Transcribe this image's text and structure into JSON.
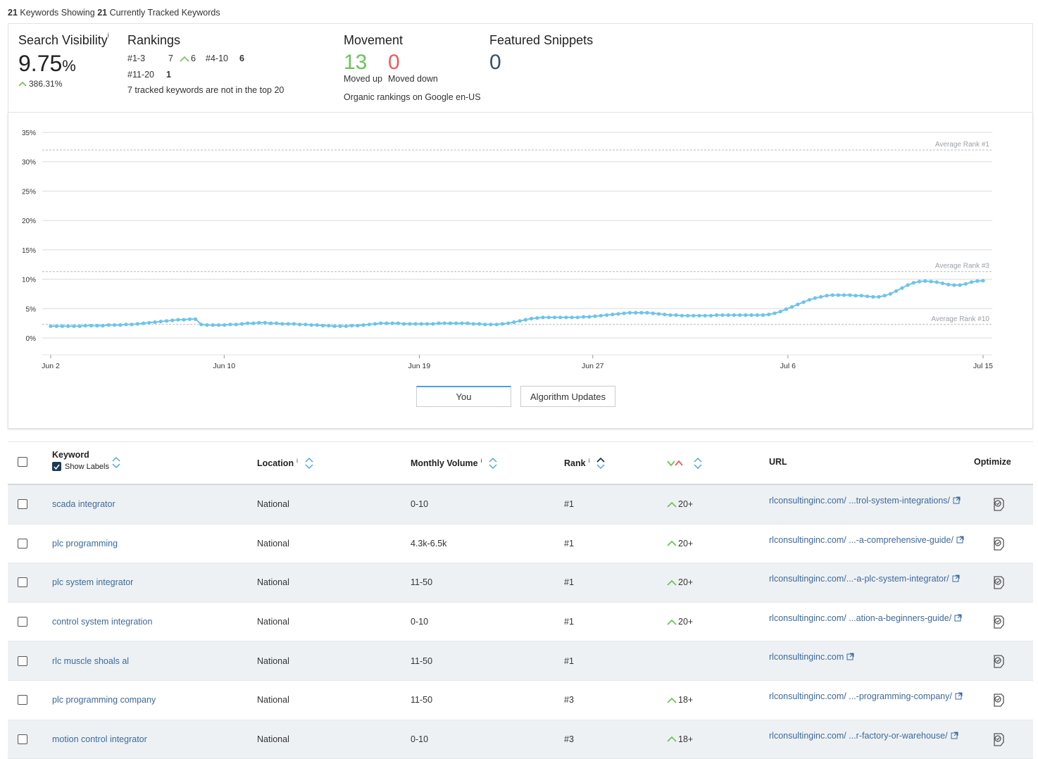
{
  "header": {
    "keyword_count": "21",
    "showing_text": "Keywords Showing",
    "tracked_count": "21",
    "tracked_text": "Currently Tracked Keywords"
  },
  "search_visibility": {
    "title": "Search Visibility",
    "info": "i",
    "value": "9.75",
    "unit": "%",
    "change": "386.31%"
  },
  "rankings": {
    "title": "Rankings",
    "r1_label": "#1-3",
    "r1_value": "7",
    "r1_change": "6",
    "r2_label": "#4-10",
    "r2_value": "6",
    "r3_label": "#11-20",
    "r3_value": "1",
    "note": "7 tracked keywords are not in the top 20"
  },
  "movement": {
    "title": "Movement",
    "up_value": "13",
    "up_label": "Moved up",
    "down_value": "0",
    "down_label": "Moved down",
    "note": "Organic rankings on Google en-US"
  },
  "featured_snippets": {
    "title": "Featured Snippets",
    "value": "0"
  },
  "colors": {
    "line": "#6cc4ea",
    "up_green": "#6cc25a",
    "down_red": "#f0595b",
    "link_blue": "#3d6a9b"
  },
  "chart_data": {
    "type": "line",
    "y_ticks": [
      "35%",
      "30%",
      "25%",
      "20%",
      "15%",
      "10%",
      "5%",
      "0%"
    ],
    "ylim": [
      0,
      35
    ],
    "x_ticks": [
      "Jun 2",
      "Jun 10",
      "Jun 19",
      "Jun 27",
      "Jul 6",
      "Jul 15"
    ],
    "x_tick_days": [
      0,
      8,
      17,
      25,
      34,
      43
    ],
    "xlim_days": [
      0,
      43
    ],
    "reference_lines": [
      {
        "label": "Average Rank #1",
        "value": 32.0
      },
      {
        "label": "Average Rank #3",
        "value": 11.3
      },
      {
        "label": "Average Rank #10",
        "value": 2.3
      }
    ],
    "grid": true,
    "series": [
      {
        "values": [
          2.0,
          2.0,
          2.0,
          2.0,
          2.0,
          2.0,
          2.1,
          2.1,
          2.1,
          2.1,
          2.2,
          2.2,
          2.2,
          2.3,
          2.3,
          2.4,
          2.5,
          2.6,
          2.7,
          2.8,
          2.9,
          3.0,
          3.1,
          3.1,
          3.2,
          3.2,
          2.3,
          2.2,
          2.2,
          2.2,
          2.2,
          2.3,
          2.3,
          2.4,
          2.5,
          2.5,
          2.6,
          2.6,
          2.5,
          2.5,
          2.4,
          2.4,
          2.4,
          2.3,
          2.3,
          2.2,
          2.2,
          2.1,
          2.1,
          2.0,
          2.0,
          2.0,
          2.1,
          2.1,
          2.2,
          2.3,
          2.4,
          2.5,
          2.5,
          2.5,
          2.5,
          2.4,
          2.4,
          2.4,
          2.4,
          2.4,
          2.4,
          2.5,
          2.5,
          2.5,
          2.5,
          2.5,
          2.5,
          2.4,
          2.4,
          2.3,
          2.3,
          2.3,
          2.4,
          2.5,
          2.7,
          2.9,
          3.1,
          3.3,
          3.4,
          3.5,
          3.5,
          3.5,
          3.5,
          3.5,
          3.5,
          3.5,
          3.6,
          3.6,
          3.7,
          3.8,
          3.9,
          4.0,
          4.1,
          4.2,
          4.3,
          4.3,
          4.3,
          4.3,
          4.2,
          4.1,
          4.0,
          3.9,
          3.9,
          3.8,
          3.8,
          3.8,
          3.8,
          3.8,
          3.8,
          3.9,
          3.9,
          3.9,
          3.9,
          3.9,
          3.9,
          3.9,
          3.9,
          3.9,
          4.0,
          4.2,
          4.5,
          4.9,
          5.3,
          5.7,
          6.1,
          6.5,
          6.8,
          7.0,
          7.2,
          7.3,
          7.3,
          7.3,
          7.3,
          7.2,
          7.2,
          7.1,
          7.0,
          7.0,
          7.2,
          7.5,
          8.0,
          8.5,
          9.0,
          9.4,
          9.6,
          9.7,
          9.6,
          9.5,
          9.3,
          9.1,
          9.0,
          9.0,
          9.2,
          9.5,
          9.7,
          9.75
        ]
      }
    ]
  },
  "tabs": {
    "you": "You",
    "algo": "Algorithm Updates"
  },
  "table": {
    "headers": {
      "keyword": "Keyword",
      "show_labels": "Show Labels",
      "location": "Location",
      "volume": "Monthly Volume",
      "rank": "Rank",
      "url": "URL",
      "optimize": "Optimize",
      "info": "i"
    },
    "rows": [
      {
        "keyword": "scada integrator",
        "location": "National",
        "volume": "0-10",
        "rank": "#1",
        "change": "20+",
        "url": "rlconsultinginc.com/ ...trol-system-integrations/"
      },
      {
        "keyword": "plc programming",
        "location": "National",
        "volume": "4.3k-6.5k",
        "rank": "#1",
        "change": "20+",
        "url": "rlconsultinginc.com/ ...-a-comprehensive-guide/"
      },
      {
        "keyword": "plc system integrator",
        "location": "National",
        "volume": "11-50",
        "rank": "#1",
        "change": "20+",
        "url": "rlconsultinginc.com/...-a-plc-system-integrator/"
      },
      {
        "keyword": "control system integration",
        "location": "National",
        "volume": "0-10",
        "rank": "#1",
        "change": "20+",
        "url": "rlconsultinginc.com/ ...ation-a-beginners-guide/"
      },
      {
        "keyword": "rlc muscle shoals al",
        "location": "National",
        "volume": "11-50",
        "rank": "#1",
        "change": "",
        "url": "rlconsultinginc.com"
      },
      {
        "keyword": "plc programming company",
        "location": "National",
        "volume": "11-50",
        "rank": "#3",
        "change": "18+",
        "url": "rlconsultinginc.com/ ...-programming-company/"
      },
      {
        "keyword": "motion control integrator",
        "location": "National",
        "volume": "0-10",
        "rank": "#3",
        "change": "18+",
        "url": "rlconsultinginc.com/ ...r-factory-or-warehouse/"
      }
    ]
  }
}
